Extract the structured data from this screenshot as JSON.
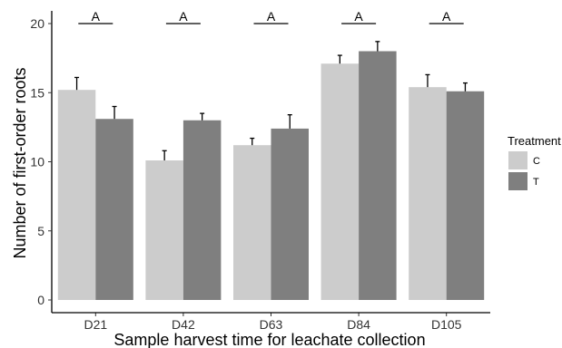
{
  "chart_data": {
    "type": "bar",
    "title": "",
    "xlabel": "Sample harvest time for leachate collection",
    "ylabel": "Number of first-order roots",
    "categories": [
      "D21",
      "D42",
      "D63",
      "D84",
      "D105"
    ],
    "ylim": [
      0,
      21
    ],
    "yticks": [
      0,
      5,
      10,
      15,
      20
    ],
    "grid": false,
    "legend": {
      "title": "Treatment",
      "position": "right"
    },
    "series": [
      {
        "name": "C",
        "color": "#cccccc",
        "values": [
          15.2,
          10.1,
          11.2,
          17.1,
          15.4
        ],
        "errors": [
          0.9,
          0.7,
          0.5,
          0.6,
          0.9
        ]
      },
      {
        "name": "T",
        "color": "#7f7f7f",
        "values": [
          13.1,
          13.0,
          12.4,
          18.0,
          15.1
        ],
        "errors": [
          0.9,
          0.5,
          1.0,
          0.7,
          0.6
        ]
      }
    ],
    "significance_letters": [
      "A",
      "A",
      "A",
      "A",
      "A"
    ]
  }
}
